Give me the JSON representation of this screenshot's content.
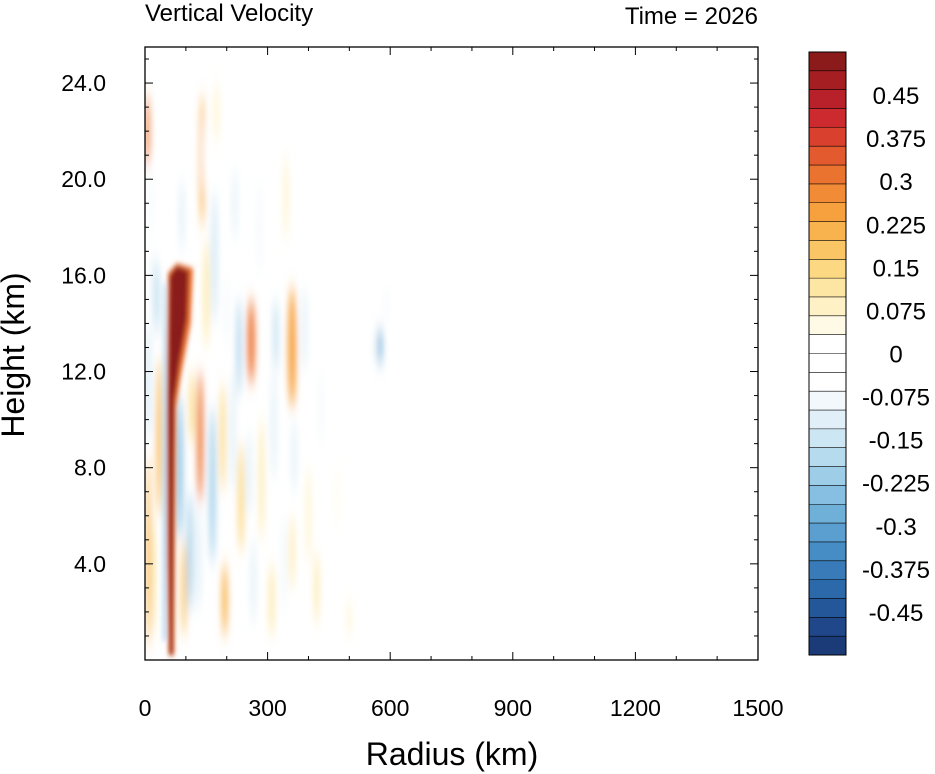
{
  "chart_data": {
    "type": "heatmap",
    "title_left": "Vertical Velocity",
    "title_right": "Time = 2026",
    "xlabel": "Radius (km)",
    "ylabel": "Height (km)",
    "xlim": [
      0,
      1500
    ],
    "ylim": [
      0,
      25.5
    ],
    "xticks": [
      0,
      300,
      600,
      900,
      1200,
      1500
    ],
    "xtick_labels": [
      "0",
      "300",
      "600",
      "900",
      "1200",
      "1500"
    ],
    "yticks": [
      4,
      8,
      12,
      16,
      20,
      24
    ],
    "ytick_labels": [
      "4.0",
      "8.0",
      "12.0",
      "16.0",
      "20.0",
      "24.0"
    ],
    "colorbar": {
      "range": [
        -0.525,
        0.525
      ],
      "labels": [
        "0.45",
        "0.375",
        "0.3",
        "0.225",
        "0.15",
        "0.075",
        "0",
        "-0.075",
        "-0.15",
        "-0.225",
        "-0.3",
        "-0.375",
        "-0.45"
      ],
      "label_values": [
        0.45,
        0.375,
        0.3,
        0.225,
        0.15,
        0.075,
        0,
        -0.075,
        -0.15,
        -0.225,
        -0.3,
        -0.375,
        -0.45
      ],
      "colors_top_to_bottom": [
        "#8b1a1a",
        "#a41e22",
        "#b8202a",
        "#cc2a2f",
        "#d9402e",
        "#e25a2e",
        "#eb7330",
        "#f28b36",
        "#f6a03e",
        "#f8b24e",
        "#fac565",
        "#fcd883",
        "#fde6a3",
        "#fef1c6",
        "#fffae6",
        "#ffffff",
        "#ffffff",
        "#ffffff",
        "#f2f8fb",
        "#e1f0f8",
        "#cde6f3",
        "#b6daee",
        "#9ecde8",
        "#86bfe1",
        "#6fb0d9",
        "#5a9fd0",
        "#478dc5",
        "#387bb8",
        "#2c69aa",
        "#24579a",
        "#1f4789",
        "#1b3a78"
      ]
    },
    "features": [
      {
        "sign": "positive",
        "peak": 0.55,
        "x_range": [
          55,
          70
        ],
        "z_range": [
          0.2,
          16.0
        ],
        "shape": "narrow eyewall updraft"
      },
      {
        "sign": "positive",
        "peak": 0.55,
        "x_range": [
          60,
          110
        ],
        "z_range": [
          11.5,
          16.4
        ],
        "shape": "outward-tilting upper eyewall outflow"
      },
      {
        "sign": "negative",
        "peak": -0.2,
        "x_range": [
          40,
          55
        ],
        "z_range": [
          0.5,
          15.5
        ],
        "shape": "eye subsidence along inner edge"
      },
      {
        "sign": "positive",
        "peak": 0.3,
        "x_center": 260,
        "z_range": [
          11.5,
          15.0
        ],
        "shape": "upper outer band"
      },
      {
        "sign": "positive",
        "peak": 0.25,
        "x_center": 360,
        "z_range": [
          10.5,
          15.5
        ],
        "shape": "upper outer band"
      },
      {
        "sign": "negative",
        "peak": -0.3,
        "x_center": 580,
        "z_range": [
          12.0,
          14.0
        ],
        "shape": "isolated downdraft streak"
      }
    ]
  }
}
